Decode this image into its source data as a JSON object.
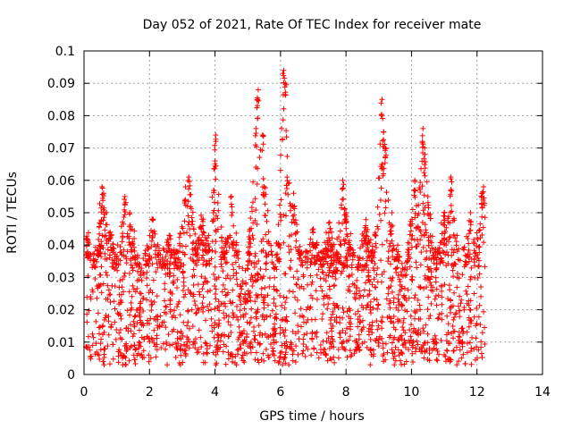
{
  "chart_data": {
    "type": "scatter",
    "title": "Day 052 of 2021, Rate Of TEC Index for receiver mate",
    "xlabel": "GPS time / hours",
    "ylabel": "ROTI / TECUs",
    "xlim": [
      0,
      14
    ],
    "ylim": [
      0,
      0.1
    ],
    "xticks": [
      0,
      2,
      4,
      6,
      8,
      10,
      12,
      14
    ],
    "xtick_labels": [
      "0",
      "2",
      "4",
      "6",
      "8",
      "10",
      "12",
      "14"
    ],
    "yticks": [
      0,
      0.01,
      0.02,
      0.03,
      0.04,
      0.05,
      0.06,
      0.07,
      0.08,
      0.09,
      0.1
    ],
    "ytick_labels": [
      "0",
      "0.01",
      "0.02",
      "0.03",
      "0.04",
      "0.05",
      "0.06",
      "0.07",
      "0.08",
      "0.09",
      "0.1"
    ],
    "grid": true,
    "marker": "+",
    "color": "#ff0000",
    "series": [
      {
        "name": "ROTI",
        "time_range": [
          0,
          12.25
        ],
        "typical_range": [
          0.005,
          0.035
        ],
        "peaks": [
          {
            "x": 0.1,
            "y": 0.042
          },
          {
            "x": 0.55,
            "y": 0.058
          },
          {
            "x": 0.6,
            "y": 0.056
          },
          {
            "x": 0.8,
            "y": 0.044
          },
          {
            "x": 1.25,
            "y": 0.055
          },
          {
            "x": 1.4,
            "y": 0.05
          },
          {
            "x": 2.1,
            "y": 0.048
          },
          {
            "x": 2.6,
            "y": 0.043
          },
          {
            "x": 3.1,
            "y": 0.058
          },
          {
            "x": 3.2,
            "y": 0.061
          },
          {
            "x": 3.6,
            "y": 0.048
          },
          {
            "x": 3.95,
            "y": 0.05
          },
          {
            "x": 4.0,
            "y": 0.066
          },
          {
            "x": 4.02,
            "y": 0.074
          },
          {
            "x": 4.5,
            "y": 0.055
          },
          {
            "x": 5.25,
            "y": 0.076
          },
          {
            "x": 5.3,
            "y": 0.085
          },
          {
            "x": 5.32,
            "y": 0.088
          },
          {
            "x": 5.45,
            "y": 0.074
          },
          {
            "x": 5.5,
            "y": 0.058
          },
          {
            "x": 6.1,
            "y": 0.094
          },
          {
            "x": 6.15,
            "y": 0.09
          },
          {
            "x": 6.2,
            "y": 0.061
          },
          {
            "x": 6.4,
            "y": 0.056
          },
          {
            "x": 7.0,
            "y": 0.045
          },
          {
            "x": 7.5,
            "y": 0.047
          },
          {
            "x": 7.9,
            "y": 0.06
          },
          {
            "x": 8.0,
            "y": 0.05
          },
          {
            "x": 8.6,
            "y": 0.046
          },
          {
            "x": 9.1,
            "y": 0.085
          },
          {
            "x": 9.15,
            "y": 0.075
          },
          {
            "x": 9.1,
            "y": 0.065
          },
          {
            "x": 9.2,
            "y": 0.07
          },
          {
            "x": 9.4,
            "y": 0.05
          },
          {
            "x": 10.1,
            "y": 0.06
          },
          {
            "x": 10.35,
            "y": 0.076
          },
          {
            "x": 10.4,
            "y": 0.07
          },
          {
            "x": 10.5,
            "y": 0.055
          },
          {
            "x": 11.0,
            "y": 0.05
          },
          {
            "x": 11.2,
            "y": 0.061
          },
          {
            "x": 11.8,
            "y": 0.05
          },
          {
            "x": 12.15,
            "y": 0.056
          },
          {
            "x": 12.2,
            "y": 0.058
          }
        ]
      }
    ]
  }
}
